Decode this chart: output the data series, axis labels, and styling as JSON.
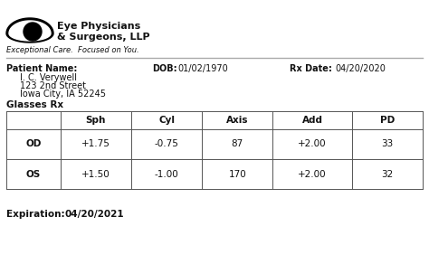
{
  "logo_text_line1": "Eye Physicians",
  "logo_text_line2": "& Surgeons, LLP",
  "tagline": "Exceptional Care.  Focused on You.",
  "patient_label": "Patient Name:",
  "patient_name": "I. C. Verywell",
  "patient_addr1": "123 2nd Street",
  "patient_addr2": "Iowa City, IA 52245",
  "dob_label": "DOB:",
  "dob_value": "01/02/1970",
  "rx_date_label": "Rx Date:",
  "rx_date_value": "04/20/2020",
  "glasses_rx_label": "Glasses Rx",
  "table_headers": [
    "",
    "Sph",
    "Cyl",
    "Axis",
    "Add",
    "PD"
  ],
  "table_rows": [
    [
      "OD",
      "+1.75",
      "-0.75",
      "87",
      "+2.00",
      "33"
    ],
    [
      "OS",
      "+1.50",
      "-1.00",
      "170",
      "+2.00",
      "32"
    ]
  ],
  "expiration_label": "Expiration:",
  "expiration_value": "04/20/2021",
  "separator_color": "#aaaaaa",
  "table_border_color": "#555555",
  "text_color": "#111111"
}
